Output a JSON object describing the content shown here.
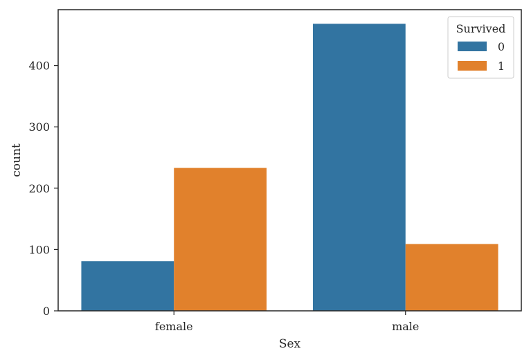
{
  "chart_data": {
    "type": "bar",
    "categories": [
      "female",
      "male"
    ],
    "series": [
      {
        "name": "0",
        "color": "#3274a1",
        "values": [
          81,
          468
        ]
      },
      {
        "name": "1",
        "color": "#e1812c",
        "values": [
          233,
          109
        ]
      }
    ],
    "xlabel": "Sex",
    "ylabel": "count",
    "ylim": [
      0,
      491
    ],
    "yticks": [
      0,
      100,
      200,
      300,
      400
    ],
    "legend": {
      "title": "Survived",
      "position": "top-right"
    },
    "grid": false
  }
}
